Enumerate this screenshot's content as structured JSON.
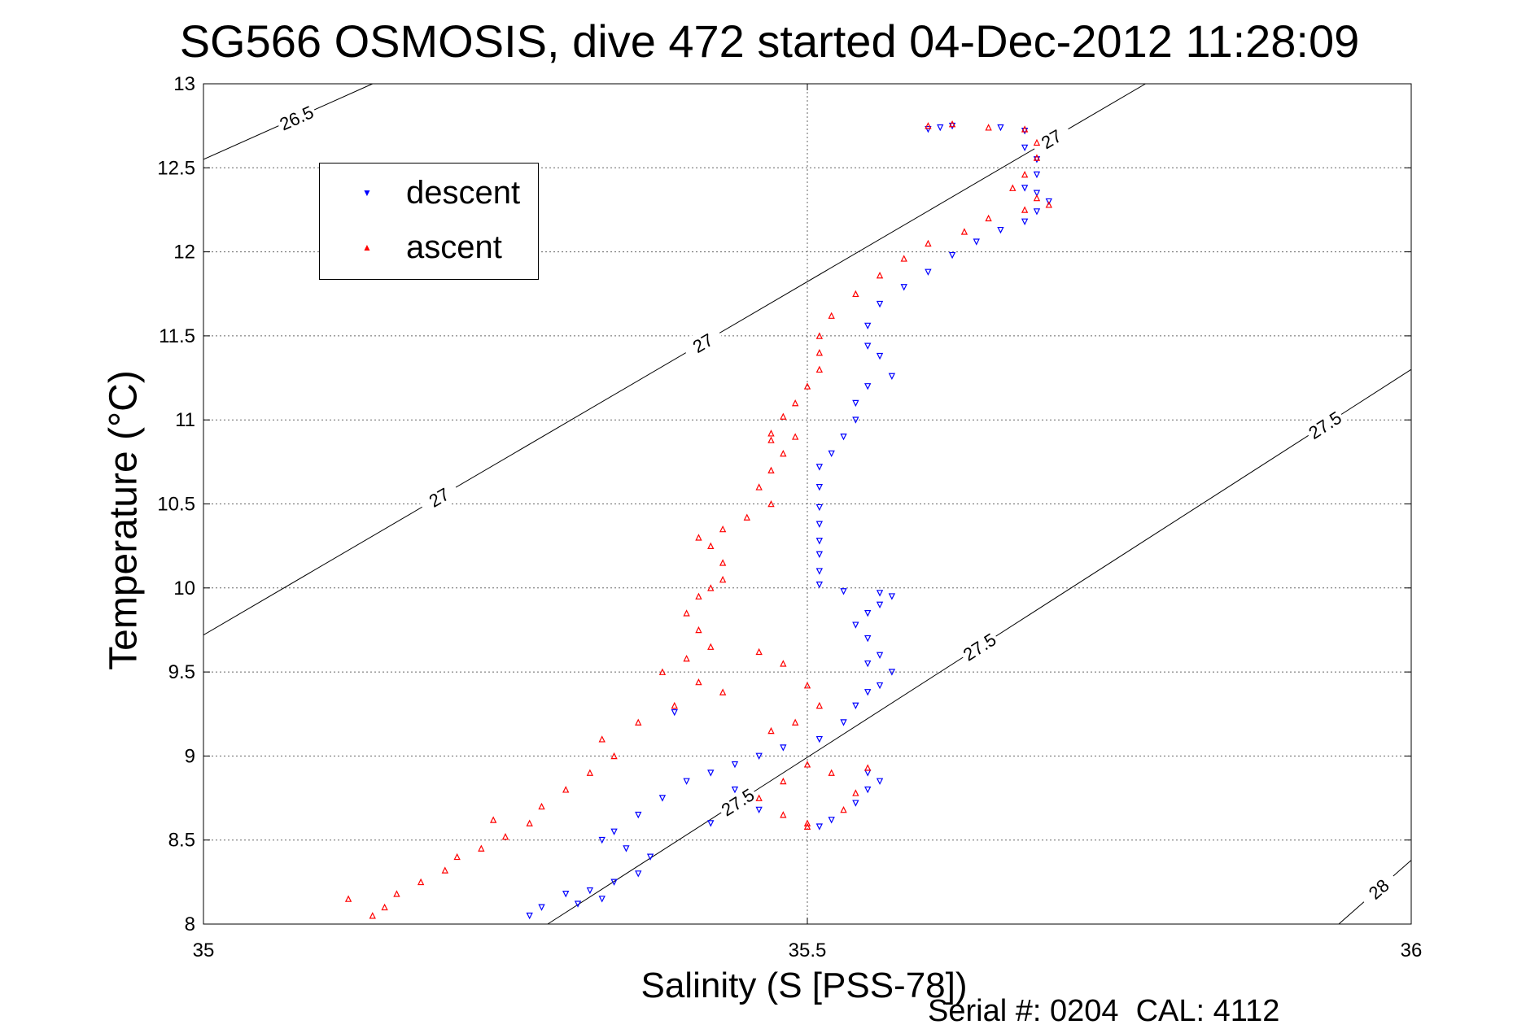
{
  "title": "SG566 OSMOSIS, dive 472 started 04-Dec-2012 11:28:09",
  "footnote": "Serial #: 0204  CAL: 4112",
  "colors": {
    "descent": "#0000ff",
    "ascent": "#ff0000",
    "axis": "#000000",
    "grid": "#666666"
  },
  "chart_data": {
    "type": "scatter",
    "title": "SG566 OSMOSIS, dive 472 started 04-Dec-2012 11:28:09",
    "xlabel": "Salinity (S [PSS-78])",
    "ylabel": "Temperature (°C)",
    "xlim": [
      35,
      36
    ],
    "ylim": [
      8,
      13
    ],
    "xticks": [
      "35",
      "35.5",
      "36"
    ],
    "yticks": [
      "8",
      "8.5",
      "9",
      "9.5",
      "10",
      "10.5",
      "11",
      "11.5",
      "12",
      "12.5",
      "13"
    ],
    "grid": true,
    "legend": {
      "placement": "top-left",
      "entries": [
        "descent",
        "ascent"
      ]
    },
    "density_contours": [
      {
        "label": "26.5",
        "points": [
          [
            35,
            12.55
          ],
          [
            35.14,
            13
          ]
        ]
      },
      {
        "label": "27",
        "points": [
          [
            35,
            9.72
          ],
          [
            35.78,
            13
          ]
        ]
      },
      {
        "label": "27.5",
        "points": [
          [
            35.285,
            8
          ],
          [
            36,
            11.3
          ]
        ]
      },
      {
        "label": "28",
        "points": [
          [
            35.94,
            8
          ],
          [
            36,
            8.38
          ]
        ]
      }
    ],
    "series": [
      {
        "name": "descent",
        "marker": "triangle-down",
        "values": [
          [
            35.6,
            12.73
          ],
          [
            35.61,
            12.74
          ],
          [
            35.62,
            12.75
          ],
          [
            35.66,
            12.74
          ],
          [
            35.68,
            12.72
          ],
          [
            35.68,
            12.62
          ],
          [
            35.69,
            12.55
          ],
          [
            35.69,
            12.46
          ],
          [
            35.68,
            12.38
          ],
          [
            35.69,
            12.35
          ],
          [
            35.7,
            12.3
          ],
          [
            35.69,
            12.24
          ],
          [
            35.68,
            12.18
          ],
          [
            35.66,
            12.13
          ],
          [
            35.64,
            12.06
          ],
          [
            35.62,
            11.98
          ],
          [
            35.6,
            11.88
          ],
          [
            35.58,
            11.79
          ],
          [
            35.56,
            11.69
          ],
          [
            35.55,
            11.56
          ],
          [
            35.55,
            11.44
          ],
          [
            35.56,
            11.38
          ],
          [
            35.57,
            11.26
          ],
          [
            35.55,
            11.2
          ],
          [
            35.54,
            11.1
          ],
          [
            35.54,
            11.0
          ],
          [
            35.53,
            10.9
          ],
          [
            35.52,
            10.8
          ],
          [
            35.51,
            10.72
          ],
          [
            35.51,
            10.6
          ],
          [
            35.51,
            10.48
          ],
          [
            35.51,
            10.38
          ],
          [
            35.51,
            10.28
          ],
          [
            35.51,
            10.2
          ],
          [
            35.51,
            10.1
          ],
          [
            35.51,
            10.02
          ],
          [
            35.53,
            9.98
          ],
          [
            35.56,
            9.97
          ],
          [
            35.57,
            9.95
          ],
          [
            35.56,
            9.9
          ],
          [
            35.55,
            9.85
          ],
          [
            35.54,
            9.78
          ],
          [
            35.55,
            9.7
          ],
          [
            35.56,
            9.6
          ],
          [
            35.55,
            9.55
          ],
          [
            35.57,
            9.5
          ],
          [
            35.56,
            9.42
          ],
          [
            35.55,
            9.38
          ],
          [
            35.54,
            9.3
          ],
          [
            35.53,
            9.2
          ],
          [
            35.51,
            9.1
          ],
          [
            35.48,
            9.05
          ],
          [
            35.46,
            9.0
          ],
          [
            35.44,
            8.95
          ],
          [
            35.42,
            8.9
          ],
          [
            35.4,
            8.85
          ],
          [
            35.38,
            8.75
          ],
          [
            35.36,
            8.65
          ],
          [
            35.34,
            8.55
          ],
          [
            35.33,
            8.5
          ],
          [
            35.35,
            8.45
          ],
          [
            35.37,
            8.4
          ],
          [
            35.36,
            8.3
          ],
          [
            35.34,
            8.25
          ],
          [
            35.32,
            8.2
          ],
          [
            35.33,
            8.15
          ],
          [
            35.31,
            8.12
          ],
          [
            35.3,
            8.18
          ],
          [
            35.28,
            8.1
          ],
          [
            35.27,
            8.05
          ],
          [
            35.39,
            9.26
          ],
          [
            35.55,
            8.9
          ],
          [
            35.56,
            8.85
          ],
          [
            35.55,
            8.8
          ],
          [
            35.54,
            8.72
          ],
          [
            35.52,
            8.62
          ],
          [
            35.51,
            8.58
          ],
          [
            35.46,
            8.68
          ],
          [
            35.44,
            8.8
          ],
          [
            35.42,
            8.6
          ]
        ]
      },
      {
        "name": "ascent",
        "marker": "triangle-up",
        "values": [
          [
            35.6,
            12.75
          ],
          [
            35.62,
            12.76
          ],
          [
            35.65,
            12.74
          ],
          [
            35.68,
            12.73
          ],
          [
            35.69,
            12.65
          ],
          [
            35.69,
            12.56
          ],
          [
            35.68,
            12.46
          ],
          [
            35.67,
            12.38
          ],
          [
            35.69,
            12.32
          ],
          [
            35.7,
            12.28
          ],
          [
            35.68,
            12.25
          ],
          [
            35.65,
            12.2
          ],
          [
            35.63,
            12.12
          ],
          [
            35.6,
            12.05
          ],
          [
            35.58,
            11.96
          ],
          [
            35.56,
            11.86
          ],
          [
            35.54,
            11.75
          ],
          [
            35.52,
            11.62
          ],
          [
            35.51,
            11.5
          ],
          [
            35.51,
            11.4
          ],
          [
            35.51,
            11.3
          ],
          [
            35.5,
            11.2
          ],
          [
            35.49,
            11.1
          ],
          [
            35.48,
            11.02
          ],
          [
            35.47,
            10.92
          ],
          [
            35.47,
            10.88
          ],
          [
            35.49,
            10.9
          ],
          [
            35.48,
            10.8
          ],
          [
            35.47,
            10.7
          ],
          [
            35.46,
            10.6
          ],
          [
            35.47,
            10.5
          ],
          [
            35.45,
            10.42
          ],
          [
            35.43,
            10.35
          ],
          [
            35.41,
            10.3
          ],
          [
            35.42,
            10.25
          ],
          [
            35.43,
            10.15
          ],
          [
            35.43,
            10.05
          ],
          [
            35.42,
            10.0
          ],
          [
            35.41,
            9.95
          ],
          [
            35.4,
            9.85
          ],
          [
            35.41,
            9.75
          ],
          [
            35.42,
            9.65
          ],
          [
            35.4,
            9.58
          ],
          [
            35.38,
            9.5
          ],
          [
            35.41,
            9.44
          ],
          [
            35.43,
            9.38
          ],
          [
            35.39,
            9.3
          ],
          [
            35.36,
            9.2
          ],
          [
            35.33,
            9.1
          ],
          [
            35.34,
            9.0
          ],
          [
            35.32,
            8.9
          ],
          [
            35.3,
            8.8
          ],
          [
            35.28,
            8.7
          ],
          [
            35.27,
            8.6
          ],
          [
            35.25,
            8.52
          ],
          [
            35.23,
            8.45
          ],
          [
            35.21,
            8.4
          ],
          [
            35.2,
            8.32
          ],
          [
            35.18,
            8.25
          ],
          [
            35.16,
            8.18
          ],
          [
            35.15,
            8.1
          ],
          [
            35.14,
            8.05
          ],
          [
            35.12,
            8.15
          ],
          [
            35.24,
            8.62
          ],
          [
            35.46,
            9.62
          ],
          [
            35.48,
            9.55
          ],
          [
            35.5,
            9.42
          ],
          [
            35.51,
            9.3
          ],
          [
            35.49,
            9.2
          ],
          [
            35.47,
            9.15
          ],
          [
            35.5,
            8.95
          ],
          [
            35.48,
            8.85
          ],
          [
            35.46,
            8.75
          ],
          [
            35.48,
            8.65
          ],
          [
            35.5,
            8.6
          ],
          [
            35.52,
            8.9
          ],
          [
            35.55,
            8.93
          ],
          [
            35.54,
            8.78
          ],
          [
            35.53,
            8.68
          ],
          [
            35.5,
            8.58
          ]
        ]
      }
    ]
  }
}
